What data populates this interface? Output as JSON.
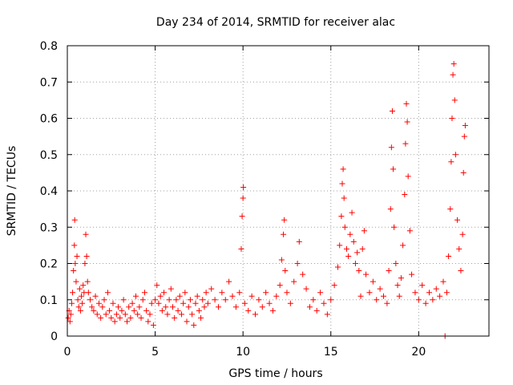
{
  "chart_data": {
    "type": "scatter",
    "title": "Day 234 of 2014, SRMTID for receiver alac",
    "xlabel": "GPS time / hours",
    "ylabel": "SRMTID / TECUs",
    "xlim": [
      0,
      24
    ],
    "ylim": [
      0,
      0.8
    ],
    "x_ticks": [
      0,
      5,
      10,
      15,
      20
    ],
    "x_tick_labels": [
      "0",
      "5",
      "10",
      "15",
      "20"
    ],
    "y_ticks": [
      0,
      0.1,
      0.2,
      0.3,
      0.4,
      0.5,
      0.6,
      0.7,
      0.8
    ],
    "y_tick_labels": [
      "0",
      "0.1",
      "0.2",
      "0.3",
      "0.4",
      "0.5",
      "0.6",
      "0.7",
      "0.8"
    ],
    "grid": true,
    "marker": "plus",
    "color": "#ff0000",
    "series": [
      {
        "name": "SRMTID",
        "points": [
          [
            0.05,
            0.05
          ],
          [
            0.1,
            0.07
          ],
          [
            0.15,
            0.04
          ],
          [
            0.2,
            0.06
          ],
          [
            0.25,
            0.09
          ],
          [
            0.3,
            0.12
          ],
          [
            0.35,
            0.18
          ],
          [
            0.4,
            0.25
          ],
          [
            0.42,
            0.32
          ],
          [
            0.45,
            0.2
          ],
          [
            0.5,
            0.15
          ],
          [
            0.55,
            0.22
          ],
          [
            0.6,
            0.1
          ],
          [
            0.65,
            0.08
          ],
          [
            0.7,
            0.13
          ],
          [
            0.75,
            0.07
          ],
          [
            0.8,
            0.11
          ],
          [
            0.85,
            0.09
          ],
          [
            0.9,
            0.14
          ],
          [
            0.95,
            0.12
          ],
          [
            1.0,
            0.2
          ],
          [
            1.05,
            0.28
          ],
          [
            1.1,
            0.22
          ],
          [
            1.15,
            0.15
          ],
          [
            1.2,
            0.12
          ],
          [
            1.3,
            0.1
          ],
          [
            1.4,
            0.08
          ],
          [
            1.5,
            0.07
          ],
          [
            1.6,
            0.11
          ],
          [
            1.7,
            0.06
          ],
          [
            1.8,
            0.09
          ],
          [
            1.9,
            0.05
          ],
          [
            2.0,
            0.08
          ],
          [
            2.1,
            0.1
          ],
          [
            2.2,
            0.06
          ],
          [
            2.3,
            0.12
          ],
          [
            2.4,
            0.07
          ],
          [
            2.5,
            0.05
          ],
          [
            2.6,
            0.09
          ],
          [
            2.7,
            0.04
          ],
          [
            2.8,
            0.06
          ],
          [
            2.9,
            0.08
          ],
          [
            3.0,
            0.05
          ],
          [
            3.1,
            0.07
          ],
          [
            3.2,
            0.1
          ],
          [
            3.3,
            0.06
          ],
          [
            3.4,
            0.04
          ],
          [
            3.5,
            0.08
          ],
          [
            3.6,
            0.05
          ],
          [
            3.7,
            0.09
          ],
          [
            3.8,
            0.07
          ],
          [
            3.9,
            0.11
          ],
          [
            4.0,
            0.06
          ],
          [
            4.1,
            0.08
          ],
          [
            4.2,
            0.05
          ],
          [
            4.3,
            0.1
          ],
          [
            4.4,
            0.12
          ],
          [
            4.5,
            0.07
          ],
          [
            4.6,
            0.04
          ],
          [
            4.7,
            0.06
          ],
          [
            4.8,
            0.09
          ],
          [
            4.9,
            0.03
          ],
          [
            5.0,
            0.1
          ],
          [
            5.1,
            0.14
          ],
          [
            5.2,
            0.09
          ],
          [
            5.3,
            0.11
          ],
          [
            5.4,
            0.07
          ],
          [
            5.5,
            0.12
          ],
          [
            5.6,
            0.08
          ],
          [
            5.7,
            0.06
          ],
          [
            5.8,
            0.1
          ],
          [
            5.9,
            0.13
          ],
          [
            6.0,
            0.08
          ],
          [
            6.1,
            0.05
          ],
          [
            6.2,
            0.1
          ],
          [
            6.3,
            0.07
          ],
          [
            6.4,
            0.11
          ],
          [
            6.5,
            0.06
          ],
          [
            6.6,
            0.09
          ],
          [
            6.7,
            0.12
          ],
          [
            6.8,
            0.04
          ],
          [
            6.9,
            0.08
          ],
          [
            7.0,
            0.1
          ],
          [
            7.1,
            0.06
          ],
          [
            7.2,
            0.03
          ],
          [
            7.3,
            0.09
          ],
          [
            7.4,
            0.11
          ],
          [
            7.5,
            0.07
          ],
          [
            7.6,
            0.05
          ],
          [
            7.7,
            0.1
          ],
          [
            7.8,
            0.08
          ],
          [
            7.9,
            0.12
          ],
          [
            8.0,
            0.09
          ],
          [
            8.2,
            0.13
          ],
          [
            8.4,
            0.1
          ],
          [
            8.6,
            0.08
          ],
          [
            8.8,
            0.12
          ],
          [
            9.0,
            0.1
          ],
          [
            9.2,
            0.15
          ],
          [
            9.4,
            0.11
          ],
          [
            9.6,
            0.08
          ],
          [
            9.8,
            0.12
          ],
          [
            9.9,
            0.24
          ],
          [
            9.95,
            0.33
          ],
          [
            10.0,
            0.38
          ],
          [
            10.02,
            0.41
          ],
          [
            10.1,
            0.09
          ],
          [
            10.3,
            0.07
          ],
          [
            10.5,
            0.11
          ],
          [
            10.7,
            0.06
          ],
          [
            10.9,
            0.1
          ],
          [
            11.1,
            0.08
          ],
          [
            11.3,
            0.12
          ],
          [
            11.5,
            0.09
          ],
          [
            11.7,
            0.07
          ],
          [
            11.9,
            0.11
          ],
          [
            12.1,
            0.14
          ],
          [
            12.2,
            0.21
          ],
          [
            12.3,
            0.28
          ],
          [
            12.35,
            0.32
          ],
          [
            12.4,
            0.18
          ],
          [
            12.5,
            0.12
          ],
          [
            12.7,
            0.09
          ],
          [
            12.9,
            0.15
          ],
          [
            13.1,
            0.2
          ],
          [
            13.2,
            0.26
          ],
          [
            13.4,
            0.17
          ],
          [
            13.6,
            0.13
          ],
          [
            13.8,
            0.08
          ],
          [
            14.0,
            0.1
          ],
          [
            14.2,
            0.07
          ],
          [
            14.4,
            0.12
          ],
          [
            14.6,
            0.09
          ],
          [
            14.8,
            0.06
          ],
          [
            15.0,
            0.1
          ],
          [
            15.2,
            0.14
          ],
          [
            15.4,
            0.19
          ],
          [
            15.5,
            0.25
          ],
          [
            15.6,
            0.33
          ],
          [
            15.65,
            0.42
          ],
          [
            15.7,
            0.46
          ],
          [
            15.75,
            0.38
          ],
          [
            15.8,
            0.3
          ],
          [
            15.9,
            0.24
          ],
          [
            16.0,
            0.22
          ],
          [
            16.1,
            0.28
          ],
          [
            16.2,
            0.34
          ],
          [
            16.3,
            0.26
          ],
          [
            16.4,
            0.2
          ],
          [
            16.5,
            0.23
          ],
          [
            16.6,
            0.18
          ],
          [
            16.7,
            0.11
          ],
          [
            16.8,
            0.24
          ],
          [
            16.9,
            0.29
          ],
          [
            17.0,
            0.17
          ],
          [
            17.2,
            0.12
          ],
          [
            17.4,
            0.15
          ],
          [
            17.6,
            0.1
          ],
          [
            17.8,
            0.13
          ],
          [
            18.0,
            0.11
          ],
          [
            18.2,
            0.09
          ],
          [
            18.3,
            0.18
          ],
          [
            18.4,
            0.35
          ],
          [
            18.45,
            0.52
          ],
          [
            18.5,
            0.62
          ],
          [
            18.55,
            0.46
          ],
          [
            18.6,
            0.3
          ],
          [
            18.7,
            0.2
          ],
          [
            18.8,
            0.14
          ],
          [
            18.9,
            0.11
          ],
          [
            19.0,
            0.16
          ],
          [
            19.1,
            0.25
          ],
          [
            19.2,
            0.39
          ],
          [
            19.25,
            0.53
          ],
          [
            19.3,
            0.64
          ],
          [
            19.35,
            0.59
          ],
          [
            19.4,
            0.44
          ],
          [
            19.5,
            0.29
          ],
          [
            19.6,
            0.17
          ],
          [
            19.8,
            0.12
          ],
          [
            20.0,
            0.1
          ],
          [
            20.2,
            0.14
          ],
          [
            20.4,
            0.09
          ],
          [
            20.6,
            0.12
          ],
          [
            20.8,
            0.1
          ],
          [
            21.0,
            0.13
          ],
          [
            21.2,
            0.11
          ],
          [
            21.4,
            0.15
          ],
          [
            21.5,
            0.0
          ],
          [
            21.6,
            0.12
          ],
          [
            21.7,
            0.22
          ],
          [
            21.8,
            0.35
          ],
          [
            21.85,
            0.48
          ],
          [
            21.9,
            0.6
          ],
          [
            21.95,
            0.72
          ],
          [
            22.0,
            0.75
          ],
          [
            22.05,
            0.65
          ],
          [
            22.1,
            0.5
          ],
          [
            22.2,
            0.32
          ],
          [
            22.3,
            0.24
          ],
          [
            22.4,
            0.18
          ],
          [
            22.5,
            0.28
          ],
          [
            22.55,
            0.45
          ],
          [
            22.6,
            0.55
          ],
          [
            22.65,
            0.58
          ]
        ]
      }
    ]
  }
}
